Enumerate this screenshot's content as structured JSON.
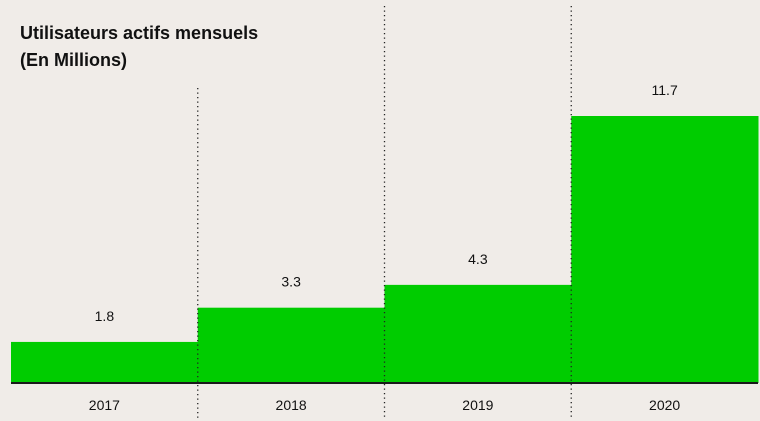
{
  "chart_data": {
    "type": "bar",
    "title": "Utilisateurs actifs mensuels",
    "subtitle": "(En Millions)",
    "categories": [
      "2017",
      "2018",
      "2019",
      "2020"
    ],
    "values": [
      1.8,
      3.3,
      4.3,
      11.7
    ],
    "value_labels": [
      "1.8",
      "3.3",
      "4.3",
      "11.7"
    ],
    "xlabel": "",
    "ylabel": "",
    "ylim": [
      0,
      11.7
    ],
    "grid": false,
    "legend": "none",
    "bar_color": "#00cc00",
    "baseline_color": "#1a1a1a",
    "background_color": "#f0ece8"
  }
}
